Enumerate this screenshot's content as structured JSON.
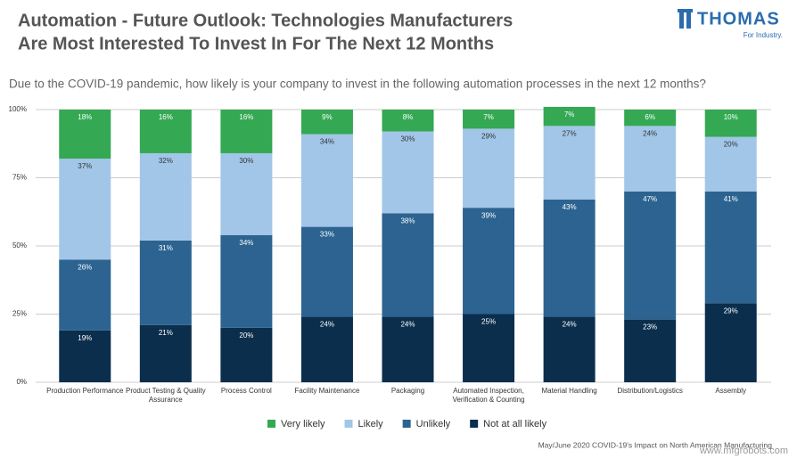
{
  "header": {
    "title_line1": "Automation - Future Outlook: Technologies Manufacturers",
    "title_line2": "Are Most Interested To Invest In For The Next 12 Months",
    "logo_name": "THOMAS",
    "logo_tagline": "For Industry."
  },
  "chart_data": {
    "type": "stacked_bar",
    "subtitle": "Due to the COVID-19 pandemic, how likely is your company to invest in the following automation processes in the next 12 months?",
    "categories": [
      "Production Performance",
      "Product Testing & Quality Assurance",
      "Process Control",
      "Facility Maintenance",
      "Packaging",
      "Automated Inspection, Verification & Counting",
      "Material Handling",
      "Distribution/Logistics",
      "Assembly"
    ],
    "series": [
      {
        "name": "Not at all likely",
        "color": "#0b2e4d",
        "label_color": "#ffffff",
        "values": [
          19,
          21,
          20,
          24,
          24,
          25,
          24,
          23,
          29
        ],
        "value_labels": [
          "19%",
          "21%",
          "20%",
          "24%",
          "24%",
          "25%",
          "24%",
          "23%",
          "29%"
        ]
      },
      {
        "name": "Unlikely",
        "color": "#2c6390",
        "label_color": "#ffffff",
        "values": [
          26,
          31,
          34,
          33,
          38,
          39,
          43,
          47,
          41
        ],
        "value_labels": [
          "26%",
          "31%",
          "34%",
          "33%",
          "38%",
          "39%",
          "43%",
          "47%",
          "41%"
        ]
      },
      {
        "name": "Likely",
        "color": "#a2c6e8",
        "label_color": "#333333",
        "values": [
          37,
          32,
          30,
          34,
          30,
          29,
          27,
          24,
          20
        ],
        "value_labels": [
          "37%",
          "32%",
          "30%",
          "34%",
          "30%",
          "29%",
          "27%",
          "24%",
          "20%"
        ]
      },
      {
        "name": "Very likely",
        "color": "#34a853",
        "label_color": "#ffffff",
        "values": [
          18,
          16,
          16,
          9,
          8,
          7,
          7,
          6,
          10
        ],
        "value_labels": [
          "18%",
          "16%",
          "16%",
          "9%",
          "8%",
          "7%",
          "7%",
          "6%",
          "10%"
        ]
      }
    ],
    "ylim": [
      0,
      100
    ],
    "yticks": [
      {
        "value": 0,
        "label": "0%"
      },
      {
        "value": 25,
        "label": "25%"
      },
      {
        "value": 50,
        "label": "50%"
      },
      {
        "value": 75,
        "label": "75%"
      },
      {
        "value": 100,
        "label": "100%"
      }
    ],
    "source": "May/June 2020 COVID-19's Impact on North American Manufacturing",
    "watermark": "www.mfgrobots.com"
  }
}
